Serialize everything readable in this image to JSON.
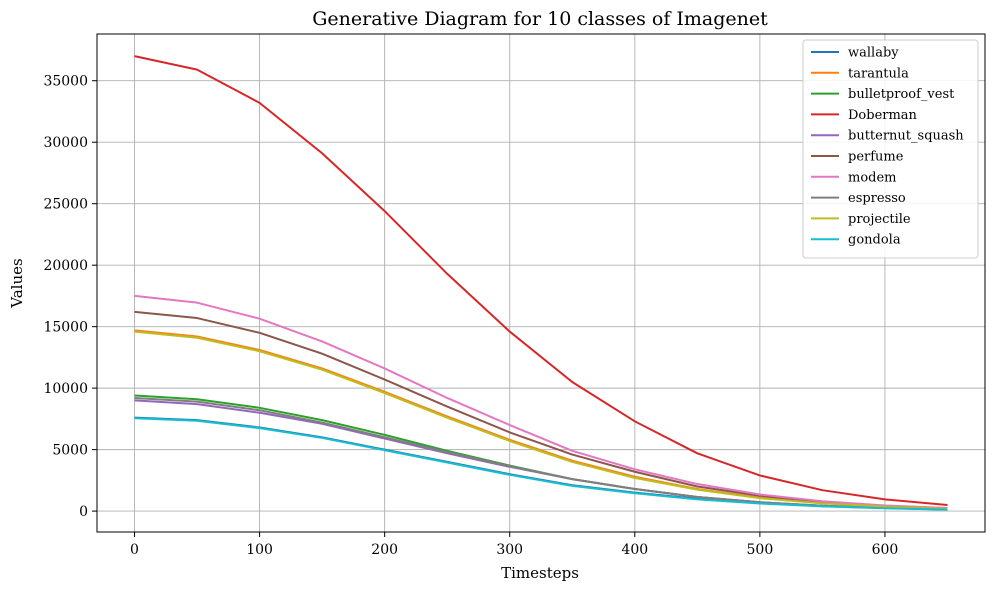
{
  "chart_data": {
    "type": "line",
    "title": "Generative Diagram for 10 classes of Imagenet",
    "xlabel": "Timesteps",
    "ylabel": "Values",
    "xlim": [
      -30,
      680
    ],
    "ylim": [
      -1700,
      38800
    ],
    "xticks": [
      0,
      100,
      200,
      300,
      400,
      500,
      600
    ],
    "yticks": [
      0,
      5000,
      10000,
      15000,
      20000,
      25000,
      30000,
      35000
    ],
    "grid": true,
    "legend_position": "top-right",
    "x": [
      0,
      50,
      100,
      150,
      200,
      250,
      300,
      350,
      400,
      450,
      500,
      550,
      600,
      650
    ],
    "series": [
      {
        "name": "wallaby",
        "color": "#1f77b4",
        "values": [
          7600,
          7400,
          6800,
          6000,
          5000,
          4000,
          3000,
          2100,
          1500,
          1000,
          650,
          400,
          250,
          130
        ]
      },
      {
        "name": "tarantula",
        "color": "#ff7f0e",
        "values": [
          14700,
          14200,
          13100,
          11600,
          9700,
          7700,
          5800,
          4100,
          2800,
          1800,
          1100,
          650,
          380,
          200
        ]
      },
      {
        "name": "bulletproof_vest",
        "color": "#2ca02c",
        "values": [
          9400,
          9100,
          8400,
          7400,
          6200,
          4900,
          3700,
          2600,
          1800,
          1150,
          720,
          430,
          260,
          140
        ]
      },
      {
        "name": "Doberman",
        "color": "#d62728",
        "values": [
          37000,
          35900,
          33200,
          29100,
          24400,
          19300,
          14600,
          10500,
          7300,
          4700,
          2900,
          1700,
          950,
          500
        ]
      },
      {
        "name": "butternut_squash",
        "color": "#9467bd",
        "values": [
          9000,
          8700,
          8000,
          7100,
          5900,
          4700,
          3600,
          2600,
          1800,
          1150,
          720,
          430,
          260,
          140
        ]
      },
      {
        "name": "perfume",
        "color": "#8c564b",
        "values": [
          16200,
          15700,
          14500,
          12800,
          10700,
          8500,
          6400,
          4600,
          3200,
          2000,
          1250,
          750,
          420,
          230
        ]
      },
      {
        "name": "modem",
        "color": "#e377c2",
        "values": [
          17500,
          16950,
          15650,
          13800,
          11600,
          9200,
          7000,
          4900,
          3400,
          2200,
          1350,
          800,
          460,
          250
        ]
      },
      {
        "name": "espresso",
        "color": "#7f7f7f",
        "values": [
          9200,
          8900,
          8200,
          7200,
          6000,
          4800,
          3650,
          2600,
          1800,
          1150,
          720,
          430,
          260,
          140
        ]
      },
      {
        "name": "projectile",
        "color": "#bcbd22",
        "values": [
          14600,
          14100,
          13000,
          11500,
          9600,
          7600,
          5700,
          4000,
          2700,
          1750,
          1050,
          630,
          370,
          190
        ]
      },
      {
        "name": "gondola",
        "color": "#17becf",
        "values": [
          7550,
          7350,
          6750,
          5950,
          4950,
          3950,
          2950,
          2050,
          1450,
          950,
          620,
          380,
          230,
          120
        ]
      }
    ]
  }
}
